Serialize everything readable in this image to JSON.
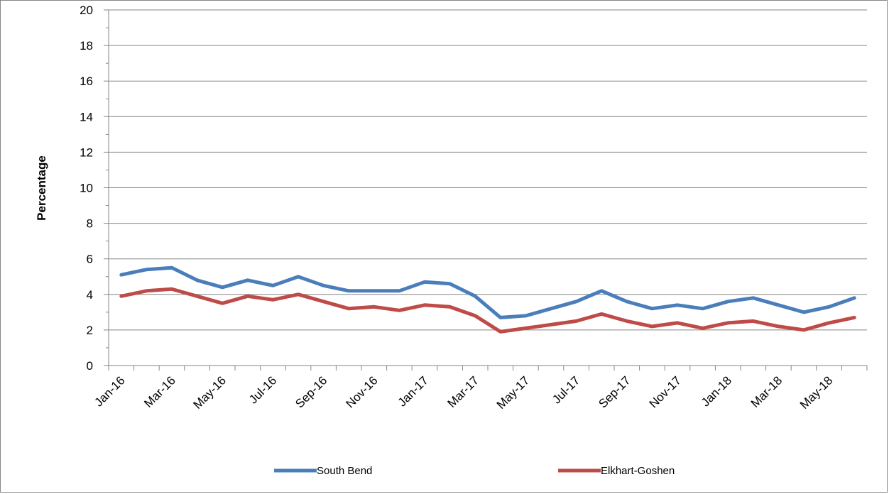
{
  "chart_data": {
    "type": "line",
    "title": "",
    "xlabel": "",
    "ylabel": "Percentage",
    "ylim": [
      0,
      20
    ],
    "y_ticks": [
      0,
      2,
      4,
      6,
      8,
      10,
      12,
      14,
      16,
      18,
      20
    ],
    "grid": "horizontal",
    "legend_position": "bottom",
    "x": [
      "Jan-16",
      "Feb-16",
      "Mar-16",
      "Apr-16",
      "May-16",
      "Jun-16",
      "Jul-16",
      "Aug-16",
      "Sep-16",
      "Oct-16",
      "Nov-16",
      "Dec-16",
      "Jan-17",
      "Feb-17",
      "Mar-17",
      "Apr-17",
      "May-17",
      "Jun-17",
      "Jul-17",
      "Aug-17",
      "Sep-17",
      "Oct-17",
      "Nov-17",
      "Dec-17",
      "Jan-18",
      "Feb-18",
      "Mar-18",
      "Apr-18",
      "May-18",
      "Jun-18"
    ],
    "x_tick_labels": [
      "Jan-16",
      "Mar-16",
      "May-16",
      "Jul-16",
      "Sep-16",
      "Nov-16",
      "Jan-17",
      "Mar-17",
      "May-17",
      "Jul-17",
      "Sep-17",
      "Nov-17",
      "Jan-18",
      "Mar-18",
      "May-18"
    ],
    "series": [
      {
        "name": "South Bend",
        "color": "#4a7ebb",
        "values": [
          5.1,
          5.4,
          5.5,
          4.8,
          4.4,
          4.8,
          4.5,
          5.0,
          4.5,
          4.2,
          4.2,
          4.2,
          4.7,
          4.6,
          3.9,
          2.7,
          2.8,
          3.2,
          3.6,
          4.2,
          3.6,
          3.2,
          3.4,
          3.2,
          3.6,
          3.8,
          3.4,
          3.0,
          3.3,
          3.8
        ]
      },
      {
        "name": "Elkhart-Goshen",
        "color": "#be4b48",
        "values": [
          3.9,
          4.2,
          4.3,
          3.9,
          3.5,
          3.9,
          3.7,
          4.0,
          3.6,
          3.2,
          3.3,
          3.1,
          3.4,
          3.3,
          2.8,
          1.9,
          2.1,
          2.3,
          2.5,
          2.9,
          2.5,
          2.2,
          2.4,
          2.1,
          2.4,
          2.5,
          2.2,
          2.0,
          2.4,
          2.7
        ]
      }
    ]
  }
}
